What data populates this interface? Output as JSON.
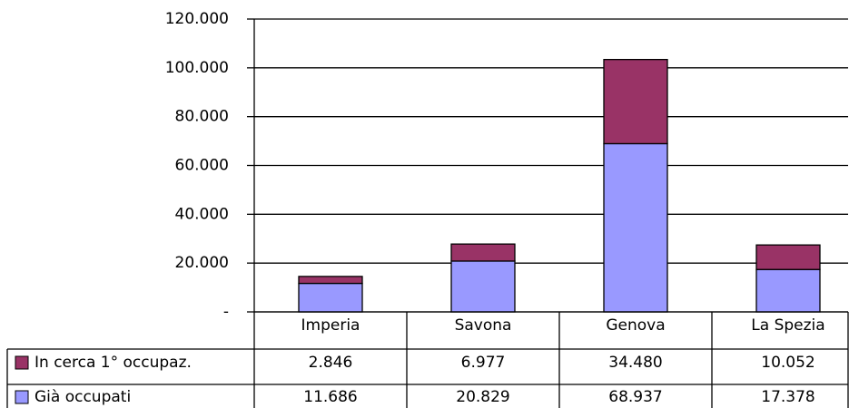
{
  "chart_data": {
    "type": "stacked-bar",
    "categories": [
      "Imperia",
      "Savona",
      "Genova",
      "La Spezia"
    ],
    "series": [
      {
        "name": "Già occupati",
        "color": "#9999ff",
        "values": [
          11686,
          20829,
          68937,
          17378
        ],
        "value_labels": [
          "11.686",
          "20.829",
          "68.937",
          "17.378"
        ]
      },
      {
        "name": "In cerca 1° occupaz.",
        "color": "#993366",
        "values": [
          2846,
          6977,
          34480,
          10052
        ],
        "value_labels": [
          "2.846",
          "6.977",
          "34.480",
          "10.052"
        ]
      }
    ],
    "ylim": [
      0,
      120000
    ],
    "yticks": [
      {
        "value": 0,
        "label": "-"
      },
      {
        "value": 20000,
        "label": "20.000"
      },
      {
        "value": 40000,
        "label": "40.000"
      },
      {
        "value": 60000,
        "label": "60.000"
      },
      {
        "value": 80000,
        "label": "80.000"
      },
      {
        "value": 100000,
        "label": "100.000"
      },
      {
        "value": 120000,
        "label": "120.000"
      }
    ],
    "grid": true
  }
}
